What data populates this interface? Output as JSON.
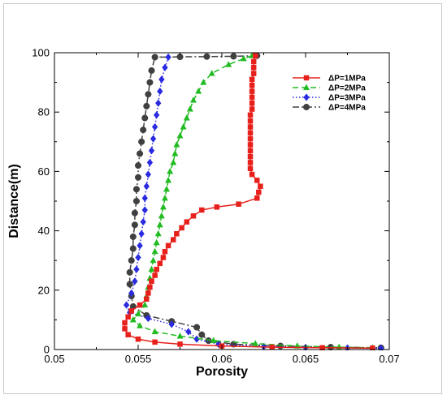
{
  "chart_data": {
    "type": "line",
    "xlabel": "Porosity",
    "ylabel": "Distance(m)",
    "xlim": [
      0.05,
      0.07
    ],
    "ylim": [
      0,
      100
    ],
    "x_ticks": [
      "0.05",
      "0.055",
      "0.06",
      "0.065",
      "0.07"
    ],
    "y_ticks": [
      "0",
      "20",
      "40",
      "60",
      "80",
      "100"
    ],
    "grid": false,
    "legend_position": "top-right",
    "series": [
      {
        "name": "ΔP=1MPa",
        "color": "#e8201c",
        "line_style": "solid",
        "marker": "square",
        "points": [
          [
            0.062,
            99
          ],
          [
            0.0619,
            97
          ],
          [
            0.0619,
            95
          ],
          [
            0.0619,
            93
          ],
          [
            0.0618,
            91
          ],
          [
            0.0618,
            89
          ],
          [
            0.0618,
            87
          ],
          [
            0.0618,
            85
          ],
          [
            0.0618,
            83
          ],
          [
            0.0618,
            81
          ],
          [
            0.0617,
            79
          ],
          [
            0.0617,
            77
          ],
          [
            0.0617,
            75
          ],
          [
            0.0617,
            73
          ],
          [
            0.0617,
            71
          ],
          [
            0.0617,
            69
          ],
          [
            0.0617,
            67
          ],
          [
            0.0617,
            65
          ],
          [
            0.0617,
            63
          ],
          [
            0.0617,
            61
          ],
          [
            0.0618,
            59
          ],
          [
            0.0621,
            57
          ],
          [
            0.0623,
            55
          ],
          [
            0.0622,
            53
          ],
          [
            0.0621,
            51
          ],
          [
            0.061,
            49
          ],
          [
            0.0597,
            48
          ],
          [
            0.0588,
            47
          ],
          [
            0.0583,
            45
          ],
          [
            0.0579,
            43
          ],
          [
            0.0576,
            41
          ],
          [
            0.0573,
            39
          ],
          [
            0.0571,
            37
          ],
          [
            0.0568,
            35
          ],
          [
            0.0566,
            33
          ],
          [
            0.0565,
            31
          ],
          [
            0.0563,
            29
          ],
          [
            0.0561,
            27
          ],
          [
            0.056,
            25
          ],
          [
            0.0558,
            23
          ],
          [
            0.0557,
            21
          ],
          [
            0.0556,
            19
          ],
          [
            0.0555,
            17
          ],
          [
            0.0551,
            15
          ],
          [
            0.0546,
            13
          ],
          [
            0.0544,
            11
          ],
          [
            0.0542,
            9
          ],
          [
            0.0542,
            7
          ],
          [
            0.0544,
            5
          ],
          [
            0.055,
            3.5
          ],
          [
            0.056,
            2.5
          ],
          [
            0.0575,
            1.8
          ],
          [
            0.06,
            1.2
          ],
          [
            0.063,
            0.8
          ],
          [
            0.066,
            0.6
          ],
          [
            0.069,
            0.5
          ]
        ]
      },
      {
        "name": "ΔP=2MPa",
        "color": "#22bb22",
        "line_style": "dashed",
        "marker": "triangle",
        "points": [
          [
            0.0618,
            99
          ],
          [
            0.0613,
            98
          ],
          [
            0.0604,
            96
          ],
          [
            0.0594,
            93
          ],
          [
            0.0589,
            90
          ],
          [
            0.0586,
            87
          ],
          [
            0.0583,
            84
          ],
          [
            0.0581,
            81
          ],
          [
            0.0579,
            78
          ],
          [
            0.0577,
            75
          ],
          [
            0.0575,
            72
          ],
          [
            0.0573,
            69
          ],
          [
            0.0572,
            66
          ],
          [
            0.0571,
            63
          ],
          [
            0.0569,
            60
          ],
          [
            0.0568,
            57
          ],
          [
            0.0567,
            54
          ],
          [
            0.0566,
            51
          ],
          [
            0.0565,
            48
          ],
          [
            0.0564,
            45
          ],
          [
            0.0563,
            42
          ],
          [
            0.0562,
            39
          ],
          [
            0.0561,
            36
          ],
          [
            0.056,
            33
          ],
          [
            0.0559,
            30
          ],
          [
            0.0558,
            27
          ],
          [
            0.0557,
            24
          ],
          [
            0.0556,
            21
          ],
          [
            0.0555,
            18
          ],
          [
            0.0554,
            15
          ],
          [
            0.055,
            12
          ],
          [
            0.0547,
            10
          ],
          [
            0.0551,
            8
          ],
          [
            0.056,
            6
          ],
          [
            0.0575,
            4.5
          ],
          [
            0.0595,
            3
          ],
          [
            0.062,
            2
          ],
          [
            0.0645,
            1.2
          ],
          [
            0.067,
            0.8
          ],
          [
            0.069,
            0.6
          ]
        ]
      },
      {
        "name": "ΔP=3MPa",
        "color": "#2a2ae0",
        "line_style": "dotted",
        "marker": "diamond",
        "points": [
          [
            0.0568,
            98.5
          ],
          [
            0.0566,
            95
          ],
          [
            0.0564,
            91
          ],
          [
            0.0563,
            87
          ],
          [
            0.0562,
            83
          ],
          [
            0.0561,
            79
          ],
          [
            0.056,
            75
          ],
          [
            0.0559,
            71
          ],
          [
            0.0558,
            67
          ],
          [
            0.0557,
            63
          ],
          [
            0.0556,
            59
          ],
          [
            0.0555,
            55
          ],
          [
            0.0554,
            51
          ],
          [
            0.0554,
            47
          ],
          [
            0.0553,
            43
          ],
          [
            0.0552,
            39
          ],
          [
            0.0551,
            35
          ],
          [
            0.055,
            31
          ],
          [
            0.0549,
            27
          ],
          [
            0.0548,
            23
          ],
          [
            0.0546,
            19
          ],
          [
            0.0543,
            15
          ],
          [
            0.0545,
            12.5
          ],
          [
            0.0556,
            10.5
          ],
          [
            0.057,
            8.5
          ],
          [
            0.058,
            6
          ],
          [
            0.0585,
            3.5
          ],
          [
            0.0598,
            1.8
          ],
          [
            0.0625,
            1.0
          ],
          [
            0.065,
            0.7
          ],
          [
            0.0675,
            0.5
          ],
          [
            0.0695,
            0.4
          ]
        ]
      },
      {
        "name": "ΔP=4MPa",
        "color": "#404040",
        "line_style": "dashdot",
        "marker": "circle",
        "points": [
          [
            0.0621,
            99
          ],
          [
            0.0607,
            98.8
          ],
          [
            0.0591,
            98.7
          ],
          [
            0.0575,
            98.6
          ],
          [
            0.056,
            98.5
          ],
          [
            0.0558,
            94
          ],
          [
            0.0557,
            90
          ],
          [
            0.0556,
            86
          ],
          [
            0.0555,
            82
          ],
          [
            0.0554,
            78
          ],
          [
            0.0553,
            74
          ],
          [
            0.0552,
            70
          ],
          [
            0.0551,
            66
          ],
          [
            0.055,
            62
          ],
          [
            0.055,
            58
          ],
          [
            0.0549,
            54
          ],
          [
            0.0549,
            50
          ],
          [
            0.0548,
            46
          ],
          [
            0.0548,
            42
          ],
          [
            0.0547,
            38
          ],
          [
            0.0547,
            34
          ],
          [
            0.0546,
            30
          ],
          [
            0.0545,
            26
          ],
          [
            0.0545,
            22
          ],
          [
            0.0546,
            18
          ],
          [
            0.0547,
            14.5
          ],
          [
            0.0555,
            11.5
          ],
          [
            0.057,
            9.5
          ],
          [
            0.0585,
            7.5
          ],
          [
            0.0588,
            5
          ],
          [
            0.0592,
            3
          ],
          [
            0.0607,
            1.8
          ],
          [
            0.0635,
            1.2
          ],
          [
            0.0665,
            0.8
          ],
          [
            0.0695,
            0.6
          ]
        ]
      }
    ]
  }
}
